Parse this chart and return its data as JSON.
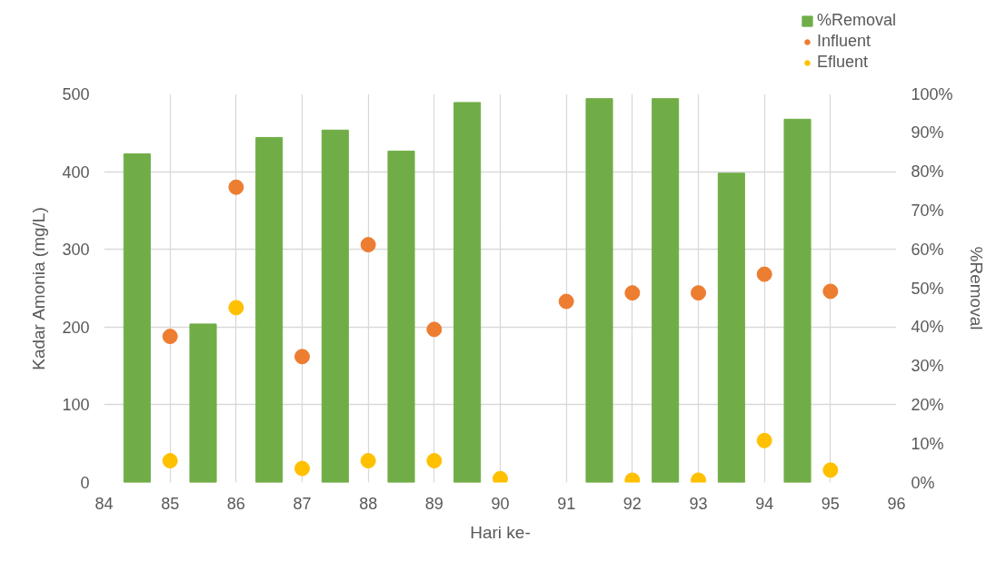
{
  "chart_data": {
    "type": "scatter",
    "xlabel": "Hari ke-",
    "ylabel": "Kadar Amonia (mg/L)",
    "y2label": "%Removal",
    "xlim": [
      84,
      96
    ],
    "xticks": [
      84,
      85,
      86,
      87,
      88,
      89,
      90,
      91,
      92,
      93,
      94,
      95,
      96
    ],
    "ylim": [
      0,
      500
    ],
    "yticks": [
      0,
      100,
      200,
      300,
      400,
      500
    ],
    "y2lim": [
      0,
      100
    ],
    "y2ticks": [
      {
        "value": 0,
        "label": "0%"
      },
      {
        "value": 10,
        "label": "10%"
      },
      {
        "value": 20,
        "label": "20%"
      },
      {
        "value": 30,
        "label": "30%"
      },
      {
        "value": 40,
        "label": "40%"
      },
      {
        "value": 50,
        "label": "50%"
      },
      {
        "value": 60,
        "label": "60%"
      },
      {
        "value": 70,
        "label": "70%"
      },
      {
        "value": 80,
        "label": "80%"
      },
      {
        "value": 90,
        "label": "90%"
      },
      {
        "value": 100,
        "label": "100%"
      }
    ],
    "grid": true,
    "legend": "top right",
    "marker": "circle",
    "series": [
      {
        "name": "%Removal",
        "type": "bar",
        "axis": "y2",
        "color": "#70ad47",
        "x": [
          84.5,
          85.5,
          86.5,
          87.5,
          88.5,
          89.5,
          91.5,
          92.5,
          93.5,
          94.5
        ],
        "values": [
          84.6,
          40.8,
          88.8,
          90.7,
          85.3,
          97.8,
          98.8,
          98.8,
          79.6,
          93.5
        ]
      },
      {
        "name": "Influent",
        "color": "#ed7d31",
        "x": [
          85,
          86,
          87,
          88,
          89,
          90,
          91,
          92,
          93,
          94,
          95
        ],
        "values": [
          188,
          380,
          162,
          306,
          197,
          null,
          233,
          244,
          244,
          268,
          246
        ]
      },
      {
        "name": "Efluent",
        "color": "#ffc000",
        "x": [
          85,
          86,
          87,
          88,
          89,
          90,
          91,
          92,
          93,
          94,
          95
        ],
        "values": [
          28,
          225,
          18,
          28,
          28,
          5,
          null,
          3,
          3,
          54,
          16
        ]
      }
    ]
  }
}
